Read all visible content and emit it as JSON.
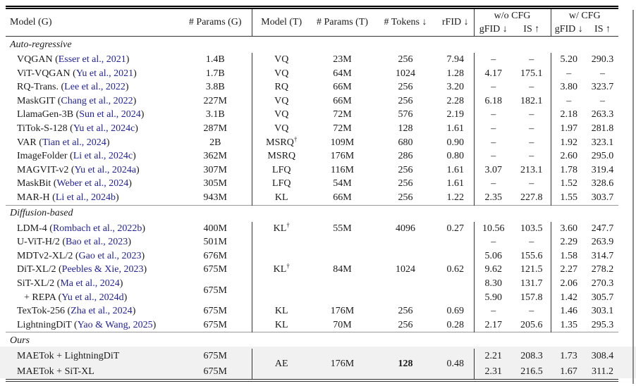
{
  "page": {
    "background": "#ffffff",
    "text_color": "#1a1a1a",
    "link_color": "#22229c",
    "highlight_color": "#f1f1f1"
  },
  "table": {
    "headers": {
      "model_g": "Model (G)",
      "params_g": "# Params (G)",
      "model_t": "Model (T)",
      "params_t": "# Params (T)",
      "tokens": "# Tokens ↓",
      "rfid": "rFID ↓",
      "wo_cfg": "w/o CFG",
      "w_cfg": "w/ CFG",
      "gfid": "gFID ↓",
      "is": "IS ↑"
    },
    "sections": [
      {
        "label": "Auto-regressive",
        "rows": [
          {
            "model": "VQGAN",
            "cite": "Esser et al., 2021",
            "cells": [
              "1.4B",
              "VQ",
              "23M",
              "256",
              "7.94",
              "–",
              "–",
              "5.20",
              "290.3"
            ]
          },
          {
            "model": "ViT-VQGAN",
            "cite": "Yu et al., 2021",
            "cells": [
              "1.7B",
              "VQ",
              "64M",
              "1024",
              "1.28",
              "4.17",
              "175.1",
              "–",
              "–"
            ]
          },
          {
            "model": "RQ-Trans.",
            "cite": "Lee et al., 2022",
            "cells": [
              "3.8B",
              "RQ",
              "66M",
              "256",
              "3.20",
              "–",
              "–",
              "3.80",
              "323.7"
            ]
          },
          {
            "model": "MaskGIT",
            "cite": "Chang et al., 2022",
            "cells": [
              "227M",
              "VQ",
              "66M",
              "256",
              "2.28",
              "6.18",
              "182.1",
              "–",
              "–"
            ]
          },
          {
            "model": "LlamaGen-3B",
            "cite": "Sun et al., 2024",
            "cells": [
              "3.1B",
              "VQ",
              "72M",
              "576",
              "2.19",
              "–",
              "–",
              "2.18",
              "263.3"
            ]
          },
          {
            "model": "TiTok-S-128",
            "cite": "Yu et al., 2024c",
            "cells": [
              "287M",
              "VQ",
              "72M",
              "128",
              "1.61",
              "–",
              "–",
              "1.97",
              "281.8"
            ]
          },
          {
            "model": "VAR",
            "cite": "Tian et al., 2024",
            "cells": [
              "2B",
              {
                "t": "MSRQ",
                "sup": "†"
              },
              "109M",
              "680",
              "0.90",
              "–",
              "–",
              "1.92",
              "323.1"
            ]
          },
          {
            "model": "ImageFolder",
            "cite": "Li et al., 2024c",
            "cells": [
              "362M",
              "MSRQ",
              "176M",
              "286",
              "0.80",
              "–",
              "–",
              "2.60",
              "295.0"
            ]
          },
          {
            "model": "MAGVIT-v2",
            "cite": "Yu et al., 2024a",
            "cells": [
              "307M",
              "LFQ",
              "116M",
              "256",
              "1.61",
              "3.07",
              "213.1",
              "1.78",
              "319.4"
            ]
          },
          {
            "model": "MaskBit",
            "cite": "Weber et al., 2024",
            "cells": [
              "305M",
              "LFQ",
              "54M",
              "256",
              "1.61",
              "–",
              "–",
              "1.52",
              "328.6"
            ]
          },
          {
            "model": "MAR-H",
            "cite": "Li et al., 2024b",
            "cells": [
              "943M",
              "KL",
              "66M",
              "256",
              "1.22",
              "2.35",
              "227.8",
              "1.55",
              "303.7"
            ]
          }
        ]
      },
      {
        "label": "Diffusion-based",
        "rows": [
          {
            "model": "LDM-4",
            "cite": "Rombach et al., 2022b",
            "cells": [
              "400M",
              {
                "t": "KL",
                "sup": "†"
              },
              "55M",
              "4096",
              "0.27",
              "10.56",
              "103.5",
              "3.60",
              "247.7"
            ]
          },
          {
            "model": "U-ViT-H/2",
            "cite": "Bao et al., 2023",
            "cells": [
              "501M",
              "",
              "",
              "",
              "",
              "–",
              "–",
              "2.29",
              "263.9"
            ]
          },
          {
            "model": "MDTv2-XL/2",
            "cite": "Gao et al., 2023",
            "cells": [
              "676M",
              "",
              "",
              "",
              "",
              "5.06",
              "155.6",
              "1.58",
              "314.7"
            ]
          },
          {
            "model": "DiT-XL/2",
            "cite": "Peebles & Xie, 2023",
            "cells": [
              "675M",
              {
                "t": "KL",
                "sup": "†"
              },
              "84M",
              "1024",
              "0.62",
              "9.62",
              "121.5",
              "2.27",
              "278.2"
            ]
          },
          {
            "model": "SiT-XL/2",
            "cite": "Ma et al., 2024",
            "cells": [
              {
                "t": "675M",
                "rs": 2
              },
              "",
              "",
              "",
              "",
              "8.30",
              "131.7",
              "2.06",
              "270.3"
            ]
          },
          {
            "model": "+ REPA",
            "cite": "Yu et al., 2024d",
            "indent": true,
            "cells": [
              {
                "omit": true
              },
              "",
              "",
              "",
              "",
              "5.90",
              "157.8",
              "1.42",
              "305.7"
            ]
          },
          {
            "model": "TexTok-256",
            "cite": "Zha et al., 2024",
            "cells": [
              "675M",
              "KL",
              "176M",
              "256",
              "0.69",
              "–",
              "–",
              "1.46",
              "303.1"
            ]
          },
          {
            "model": "LightningDiT",
            "cite": "Yao & Wang, 2025",
            "cells": [
              "675M",
              "KL",
              "70M",
              "256",
              "0.28",
              "2.17",
              "205.6",
              "1.35",
              "295.3"
            ]
          }
        ]
      },
      {
        "label": "Ours",
        "highlight": true,
        "no_div3": true,
        "rows": [
          {
            "model": "MAETok + LightningDiT",
            "cells": [
              "675M",
              {
                "t": "AE",
                "rs": 2
              },
              {
                "t": "176M",
                "rs": 2
              },
              {
                "t": "128",
                "rs": 2,
                "bold": true
              },
              {
                "t": "0.48",
                "rs": 2
              },
              "2.21",
              "208.3",
              "1.73",
              "308.4"
            ]
          },
          {
            "model": "MAETok + SiT-XL",
            "cells": [
              "675M",
              {
                "omit": true
              },
              {
                "omit": true
              },
              {
                "omit": true
              },
              {
                "omit": true
              },
              "2.31",
              "216.5",
              "1.67",
              "311.2"
            ]
          }
        ]
      }
    ]
  }
}
